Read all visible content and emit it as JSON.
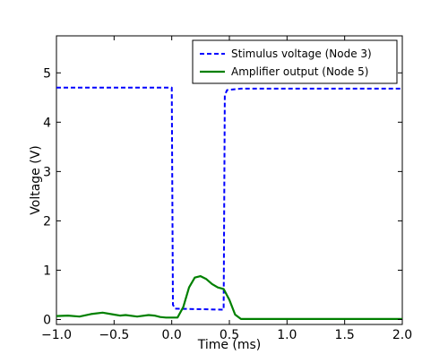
{
  "chart_data": {
    "type": "line",
    "title": "",
    "xlabel": "Time (ms)",
    "ylabel": "Voltage (V)",
    "xlim": [
      -1.0,
      2.0
    ],
    "ylim": [
      -0.1,
      5.75
    ],
    "xticks": [
      -1.0,
      -0.5,
      0.0,
      0.5,
      1.0,
      1.5,
      2.0
    ],
    "xtick_labels": [
      "−1.0",
      "−0.5",
      "0.0",
      "0.5",
      "1.0",
      "1.5",
      "2.0"
    ],
    "yticks": [
      0,
      1,
      2,
      3,
      4,
      5
    ],
    "ytick_labels": [
      "0",
      "1",
      "2",
      "3",
      "4",
      "5"
    ],
    "grid": false,
    "legend_position": "top-right",
    "series": [
      {
        "name": "Stimulus voltage (Node 3)",
        "style": "dashed",
        "color": "#0000ff",
        "x": [
          -1.0,
          0.0,
          0.01,
          0.03,
          0.45,
          0.46,
          0.48,
          0.6,
          1.0,
          2.0
        ],
        "y": [
          4.7,
          4.7,
          0.3,
          0.22,
          0.2,
          4.55,
          4.65,
          4.68,
          4.68,
          4.68
        ]
      },
      {
        "name": "Amplifier output (Node 5)",
        "style": "solid",
        "color": "#008000",
        "x": [
          -1.0,
          -0.9,
          -0.8,
          -0.7,
          -0.6,
          -0.5,
          -0.45,
          -0.4,
          -0.3,
          -0.2,
          -0.15,
          -0.1,
          -0.05,
          0.0,
          0.05,
          0.1,
          0.15,
          0.2,
          0.25,
          0.3,
          0.35,
          0.4,
          0.45,
          0.5,
          0.55,
          0.6,
          1.0,
          1.5,
          2.0
        ],
        "y": [
          0.07,
          0.08,
          0.06,
          0.11,
          0.14,
          0.1,
          0.08,
          0.09,
          0.06,
          0.09,
          0.08,
          0.05,
          0.04,
          0.04,
          0.04,
          0.25,
          0.65,
          0.85,
          0.88,
          0.82,
          0.72,
          0.65,
          0.62,
          0.4,
          0.1,
          0.01,
          0.01,
          0.01,
          0.01
        ]
      }
    ]
  }
}
